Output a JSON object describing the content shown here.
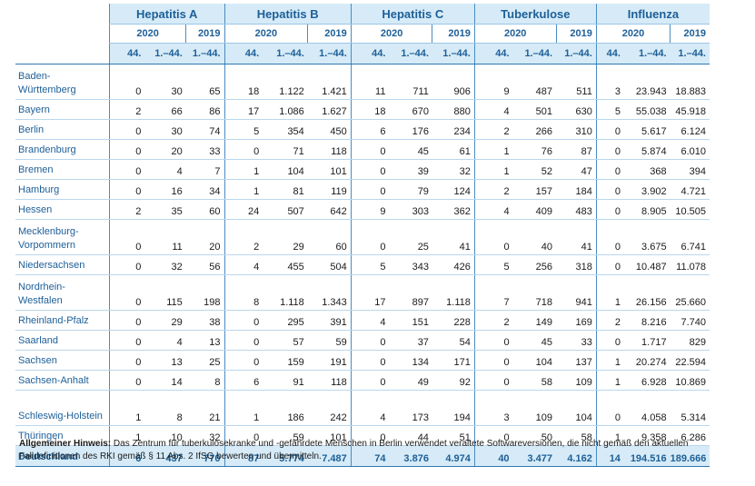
{
  "diseases": [
    "Hepatitis A",
    "Hepatitis B",
    "Hepatitis C",
    "Tuberkulose",
    "Influenza"
  ],
  "year_labels": [
    "2020",
    "2019"
  ],
  "col_labels": [
    "44.",
    "1.–44.",
    "1.–44."
  ],
  "rows": [
    {
      "state": "Baden-Württemberg",
      "v": [
        "0",
        "30",
        "65",
        "18",
        "1.122",
        "1.421",
        "11",
        "711",
        "906",
        "9",
        "487",
        "511",
        "3",
        "23.943",
        "18.883"
      ]
    },
    {
      "state": "Bayern",
      "v": [
        "2",
        "66",
        "86",
        "17",
        "1.086",
        "1.627",
        "18",
        "670",
        "880",
        "4",
        "501",
        "630",
        "5",
        "55.038",
        "45.918"
      ]
    },
    {
      "state": "Berlin",
      "v": [
        "0",
        "30",
        "74",
        "5",
        "354",
        "450",
        "6",
        "176",
        "234",
        "2",
        "266",
        "310",
        "0",
        "5.617",
        "6.124"
      ]
    },
    {
      "state": "Brandenburg",
      "v": [
        "0",
        "20",
        "33",
        "0",
        "71",
        "118",
        "0",
        "45",
        "61",
        "1",
        "76",
        "87",
        "0",
        "5.874",
        "6.010"
      ]
    },
    {
      "state": "Bremen",
      "v": [
        "0",
        "4",
        "7",
        "1",
        "104",
        "101",
        "0",
        "39",
        "32",
        "1",
        "52",
        "47",
        "0",
        "368",
        "394"
      ]
    },
    {
      "state": "Hamburg",
      "v": [
        "0",
        "16",
        "34",
        "1",
        "81",
        "119",
        "0",
        "79",
        "124",
        "2",
        "157",
        "184",
        "0",
        "3.902",
        "4.721"
      ]
    },
    {
      "state": "Hessen",
      "v": [
        "2",
        "35",
        "60",
        "24",
        "507",
        "642",
        "9",
        "303",
        "362",
        "4",
        "409",
        "483",
        "0",
        "8.905",
        "10.505"
      ]
    },
    {
      "state": "Mecklenburg-Vorpommern",
      "v": [
        "0",
        "11",
        "20",
        "2",
        "29",
        "60",
        "0",
        "25",
        "41",
        "0",
        "40",
        "41",
        "0",
        "3.675",
        "6.741"
      ]
    },
    {
      "state": "Niedersachsen",
      "v": [
        "0",
        "32",
        "56",
        "4",
        "455",
        "504",
        "5",
        "343",
        "426",
        "5",
        "256",
        "318",
        "0",
        "10.487",
        "11.078"
      ]
    },
    {
      "state": "Nordrhein-Westfalen",
      "v": [
        "0",
        "115",
        "198",
        "8",
        "1.118",
        "1.343",
        "17",
        "897",
        "1.118",
        "7",
        "718",
        "941",
        "1",
        "26.156",
        "25.660"
      ]
    },
    {
      "state": "Rheinland-Pfalz",
      "v": [
        "0",
        "29",
        "38",
        "0",
        "295",
        "391",
        "4",
        "151",
        "228",
        "2",
        "149",
        "169",
        "2",
        "8.216",
        "7.740"
      ]
    },
    {
      "state": "Saarland",
      "v": [
        "0",
        "4",
        "13",
        "0",
        "57",
        "59",
        "0",
        "37",
        "54",
        "0",
        "45",
        "33",
        "0",
        "1.717",
        "829"
      ]
    },
    {
      "state": "Sachsen",
      "v": [
        "0",
        "13",
        "25",
        "0",
        "159",
        "191",
        "0",
        "134",
        "171",
        "0",
        "104",
        "137",
        "1",
        "20.274",
        "22.594"
      ]
    },
    {
      "state": "Sachsen-Anhalt",
      "v": [
        "0",
        "14",
        "8",
        "6",
        "91",
        "118",
        "0",
        "49",
        "92",
        "0",
        "58",
        "109",
        "1",
        "6.928",
        "10.869"
      ]
    },
    {
      "state": "Schleswig-Holstein",
      "v": [
        "1",
        "8",
        "21",
        "1",
        "186",
        "242",
        "4",
        "173",
        "194",
        "3",
        "109",
        "104",
        "0",
        "4.058",
        "5.314"
      ]
    },
    {
      "state": "Thüringen",
      "v": [
        "1",
        "10",
        "32",
        "0",
        "59",
        "101",
        "0",
        "44",
        "51",
        "0",
        "50",
        "58",
        "1",
        "9.358",
        "6.286"
      ]
    }
  ],
  "total": {
    "state": "Deutschland",
    "v": [
      "6",
      "437",
      "770",
      "87",
      "5.774",
      "7.487",
      "74",
      "3.876",
      "4.974",
      "40",
      "3.477",
      "4.162",
      "14",
      "194.516",
      "189.666"
    ]
  },
  "note": {
    "label": "Allgemeiner Hinweis:",
    "text": "Das Zentrum für tuberkulosekranke und -gefährdete Menschen in Berlin verwendet veraltete Softwareversionen, die nicht gemäß den aktuellen Falldefinitionen des RKI gemäß § 11 Abs. 2 IfSG bewerten und übermitteln."
  },
  "colors": {
    "header_bg": "#d6ebf7",
    "header_text": "#1d5f98",
    "rule": "#2d77b3"
  }
}
